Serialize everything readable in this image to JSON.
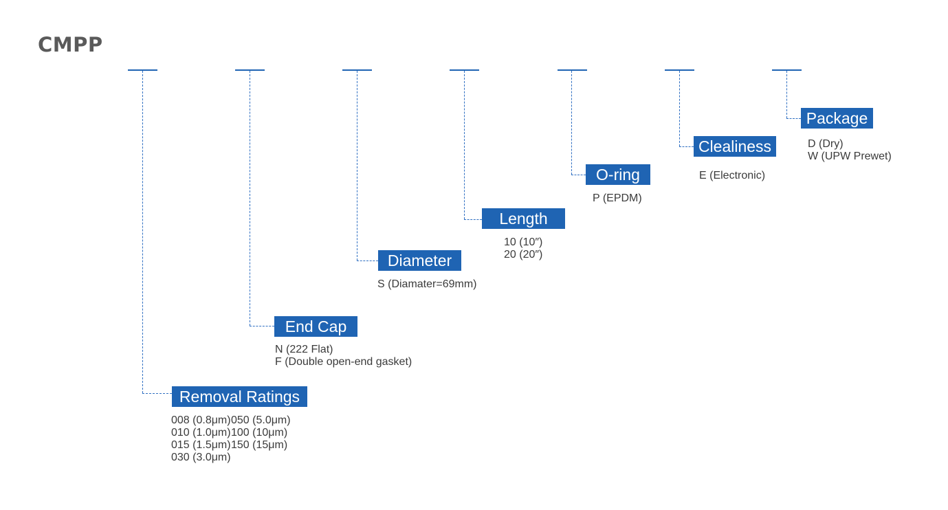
{
  "title": "CMPP",
  "colors": {
    "accent": "#1f64b3",
    "line": "#2f6fc2"
  },
  "segments": [
    {
      "label": "Removal Ratings",
      "options_col1": [
        "008 (0.8μm)",
        "010 (1.0μm)",
        "015 (1.5μm)",
        "030 (3.0μm)"
      ],
      "options_col2": [
        "050 (5.0μm)",
        "100 (10μm)",
        "150 (15μm)"
      ]
    },
    {
      "label": "End Cap",
      "options": [
        "N (222 Flat)",
        "F (Double open-end gasket)"
      ]
    },
    {
      "label": "Diameter",
      "options": [
        "S (Diamater=69mm)"
      ]
    },
    {
      "label": "Length",
      "options": [
        "10 (10″)",
        "20 (20″)"
      ]
    },
    {
      "label": "O-ring",
      "options": [
        "P (EPDM)"
      ]
    },
    {
      "label": "Clealiness",
      "options": [
        "E (Electronic)"
      ]
    },
    {
      "label": "Package",
      "options": [
        "D (Dry)",
        "W (UPW Prewet)"
      ]
    }
  ]
}
